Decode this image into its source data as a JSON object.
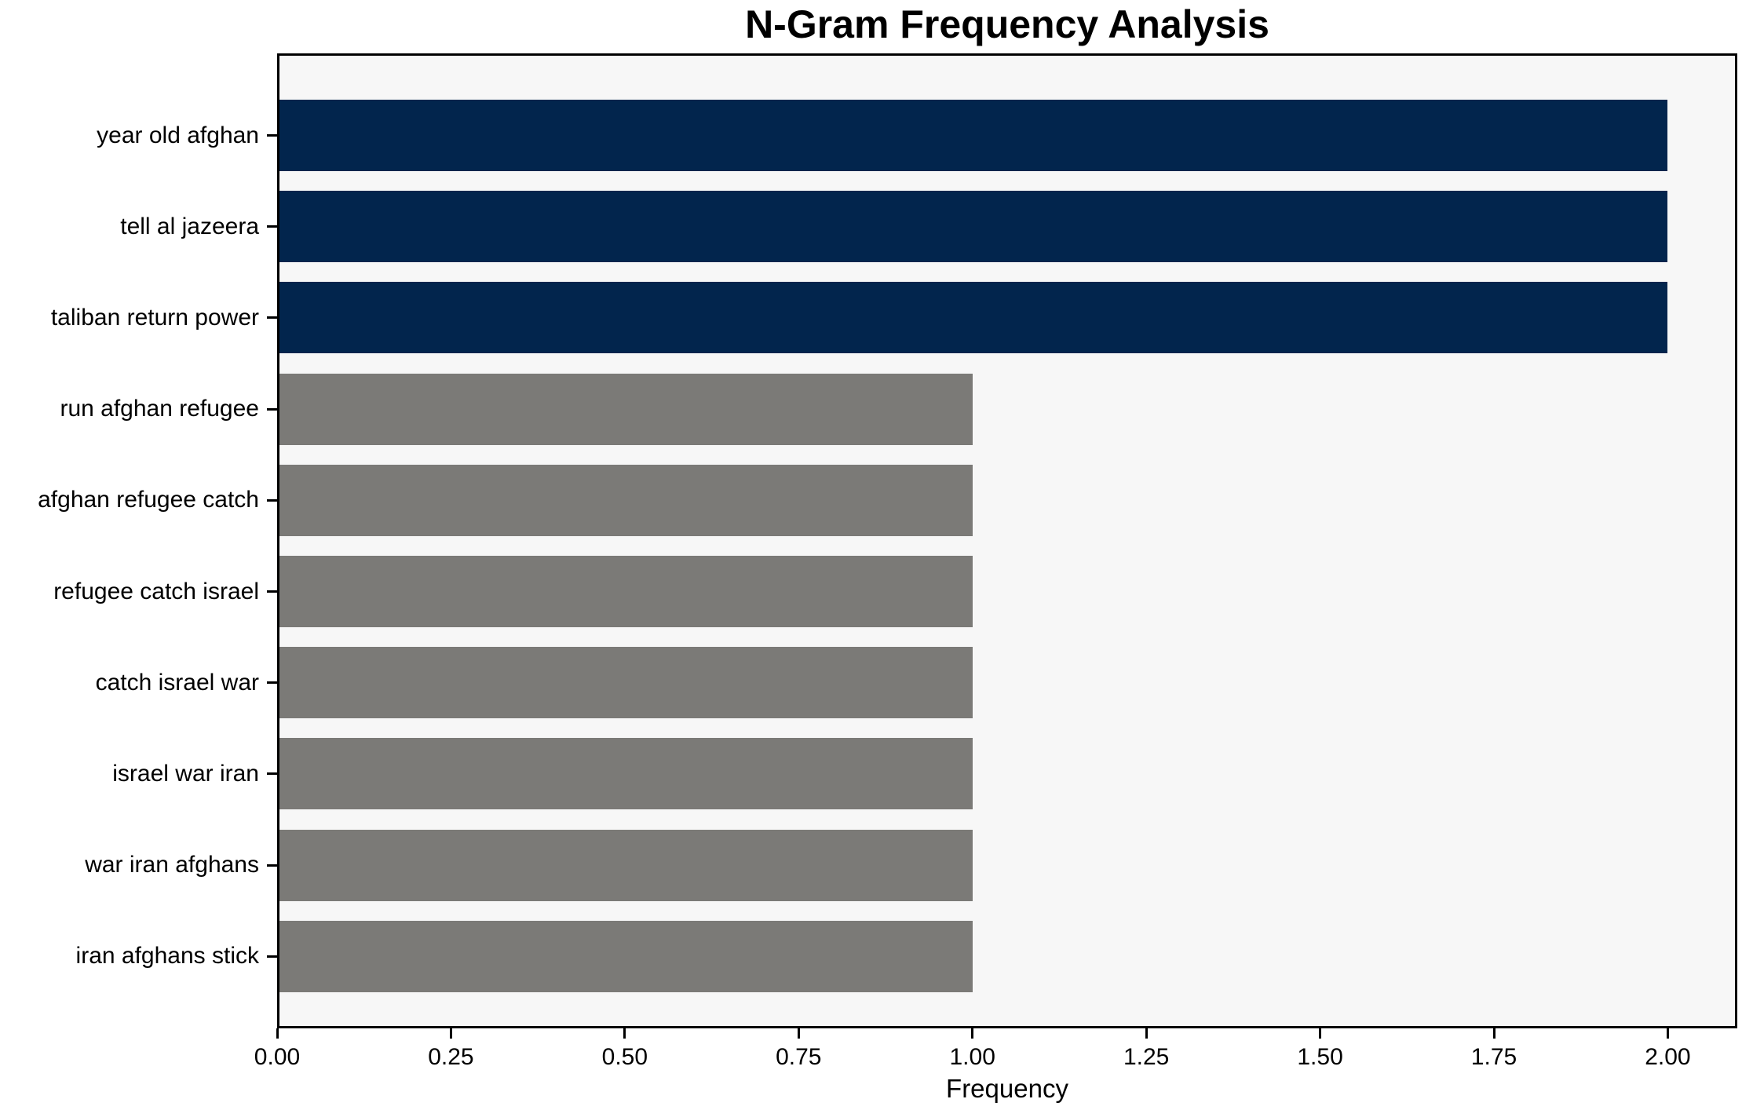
{
  "chart_data": {
    "type": "bar",
    "orientation": "horizontal",
    "title": "N-Gram Frequency Analysis",
    "xlabel": "Frequency",
    "ylabel": "",
    "categories": [
      "year old afghan",
      "tell al jazeera",
      "taliban return power",
      "run afghan refugee",
      "afghan refugee catch",
      "refugee catch israel",
      "catch israel war",
      "israel war iran",
      "war iran afghans",
      "iran afghans stick"
    ],
    "values": [
      2,
      2,
      2,
      1,
      1,
      1,
      1,
      1,
      1,
      1
    ],
    "bar_colors": [
      "#02254d",
      "#02254d",
      "#02254d",
      "#7b7a77",
      "#7b7a77",
      "#7b7a77",
      "#7b7a77",
      "#7b7a77",
      "#7b7a77",
      "#7b7a77"
    ],
    "xlim": [
      0,
      2.1
    ],
    "xticks": [
      0,
      0.25,
      0.5,
      0.75,
      1.0,
      1.25,
      1.5,
      1.75,
      2.0
    ],
    "xtick_labels": [
      "0.00",
      "0.25",
      "0.50",
      "0.75",
      "1.00",
      "1.25",
      "1.50",
      "1.75",
      "2.00"
    ],
    "plot_background": "#f7f7f7",
    "spine_color": "#000000",
    "grid": false,
    "legend": null
  }
}
